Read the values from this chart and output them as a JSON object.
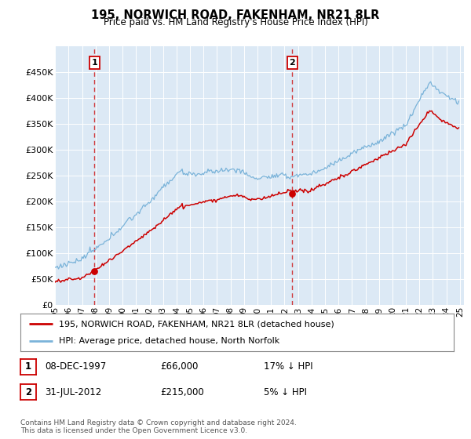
{
  "title": "195, NORWICH ROAD, FAKENHAM, NR21 8LR",
  "subtitle": "Price paid vs. HM Land Registry's House Price Index (HPI)",
  "hpi_label": "HPI: Average price, detached house, North Norfolk",
  "property_label": "195, NORWICH ROAD, FAKENHAM, NR21 8LR (detached house)",
  "sale1_date": "08-DEC-1997",
  "sale1_price": 66000,
  "sale1_hpi": "17% ↓ HPI",
  "sale2_date": "31-JUL-2012",
  "sale2_price": 215000,
  "sale2_hpi": "5% ↓ HPI",
  "sale1_year": 1997.92,
  "sale2_year": 2012.58,
  "ylim_min": 0,
  "ylim_max": 500000,
  "xmin": 1995.0,
  "xmax": 2025.3,
  "background_color": "#dce9f5",
  "hpi_color": "#7ab3d9",
  "property_color": "#cc0000",
  "grid_color": "#ffffff",
  "footnote": "Contains HM Land Registry data © Crown copyright and database right 2024.\nThis data is licensed under the Open Government Licence v3.0."
}
